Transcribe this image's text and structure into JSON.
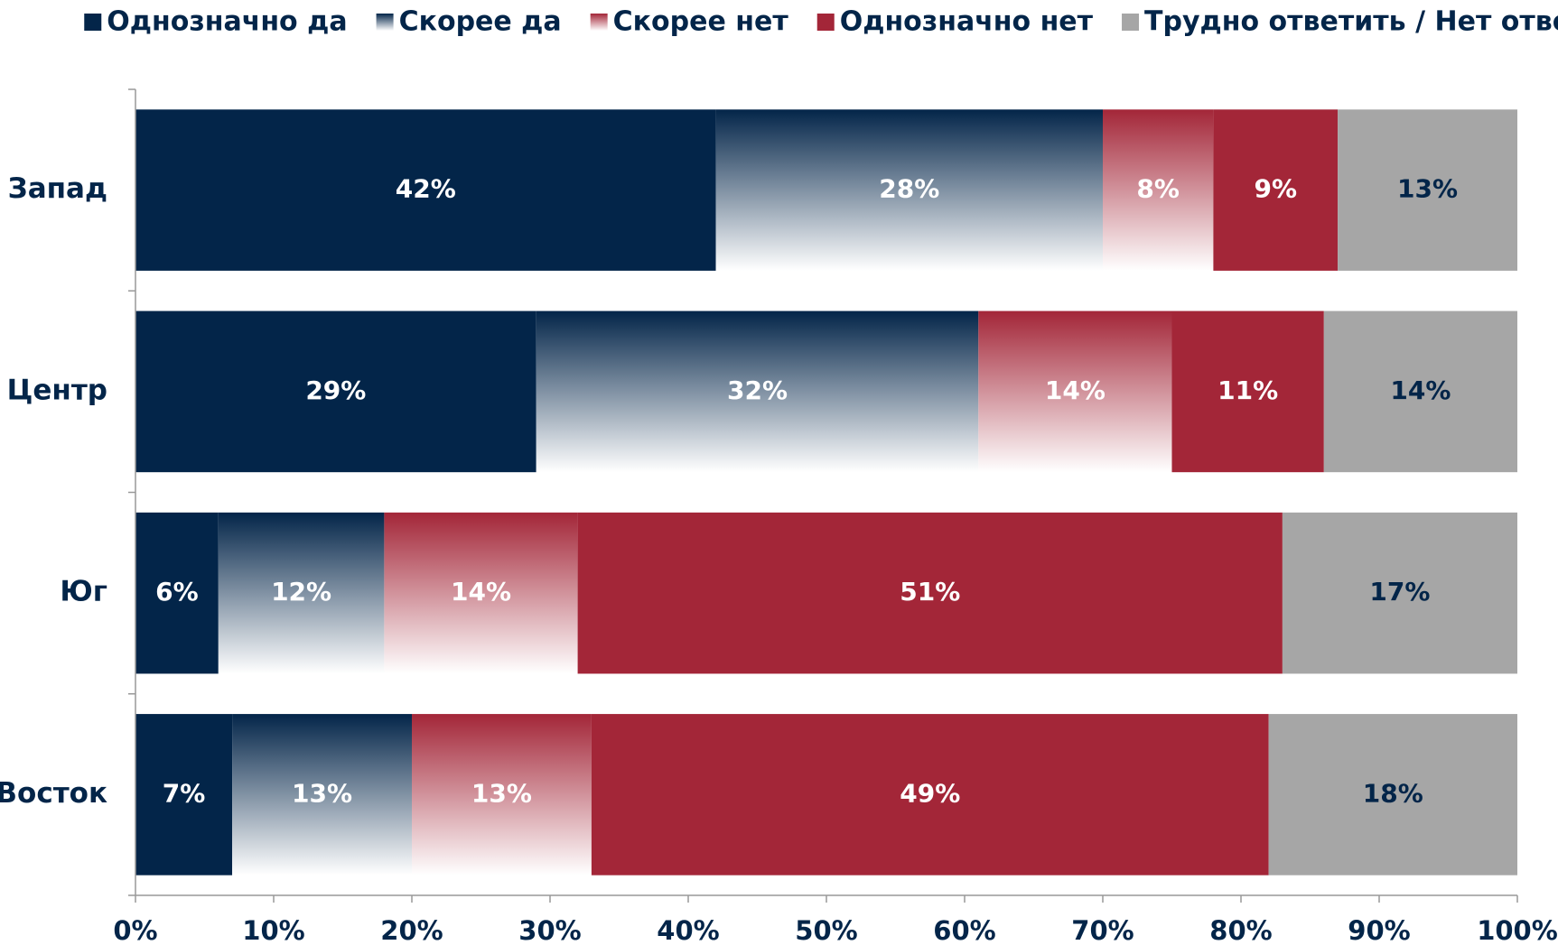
{
  "chart_data": {
    "type": "stacked_barh",
    "categories": [
      "Запад",
      "Центр",
      "Юг",
      "Восток"
    ],
    "series": [
      {
        "name": "Однозначно да",
        "color": "#032549",
        "fill": "solid",
        "label_color": "#ffffff",
        "values": [
          42,
          29,
          6,
          7
        ],
        "value_labels": [
          "42%",
          "29%",
          "6%",
          "7%"
        ]
      },
      {
        "name": "Скорее да",
        "color": "#032549",
        "fill": "gradient",
        "label_color": "#ffffff",
        "values": [
          28,
          32,
          12,
          13
        ],
        "value_labels": [
          "28%",
          "32%",
          "12%",
          "13%"
        ]
      },
      {
        "name": "Скорее нет",
        "color": "#a32638",
        "fill": "gradient",
        "label_color": "#ffffff",
        "values": [
          8,
          14,
          14,
          13
        ],
        "value_labels": [
          "8%",
          "14%",
          "14%",
          "13%"
        ]
      },
      {
        "name": "Однозначно нет",
        "color": "#a32638",
        "fill": "solid",
        "label_color": "#ffffff",
        "values": [
          9,
          11,
          51,
          49
        ],
        "value_labels": [
          "9%",
          "11%",
          "51%",
          "49%"
        ]
      },
      {
        "name": "Трудно ответить / Нет ответа",
        "color": "#a6a6a6",
        "fill": "solid",
        "label_color": "#032549",
        "values": [
          13,
          14,
          17,
          18
        ],
        "value_labels": [
          "13%",
          "14%",
          "17%",
          "18%"
        ]
      }
    ],
    "xlim": [
      0,
      100
    ],
    "xticks": [
      {
        "value": 0,
        "label": "0%"
      },
      {
        "value": 10,
        "label": "10%"
      },
      {
        "value": 20,
        "label": "20%"
      },
      {
        "value": 30,
        "label": "30%"
      },
      {
        "value": 40,
        "label": "40%"
      },
      {
        "value": 50,
        "label": "50%"
      },
      {
        "value": 60,
        "label": "60%"
      },
      {
        "value": 70,
        "label": "70%"
      },
      {
        "value": 80,
        "label": "80%"
      },
      {
        "value": 90,
        "label": "90%"
      },
      {
        "value": 100,
        "label": "100%"
      }
    ],
    "legend": "top"
  }
}
